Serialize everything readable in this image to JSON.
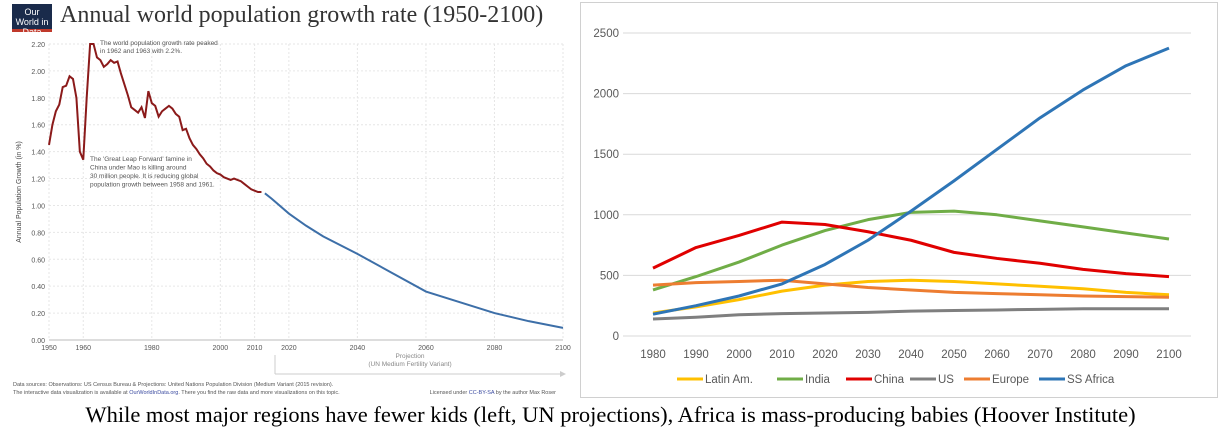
{
  "left": {
    "logo": "Our World in Data",
    "title": "Annual world population growth rate (1950-2100)"
  },
  "caption": "While most major regions have fewer kids (left, UN projections), Africa is mass-producing babies (Hoover Institute)",
  "chart_data": [
    {
      "type": "line",
      "title": "Annual world population growth rate (1950-2100)",
      "ylabel": "Annual Population Growth (in %)",
      "xlim": [
        1950,
        2100
      ],
      "ylim": [
        0,
        2.2
      ],
      "grid": true,
      "xticks": [
        "1950",
        "1960",
        "1980",
        "2000",
        "2010",
        "2020",
        "2040",
        "2060",
        "2080",
        "2100"
      ],
      "yticks": [
        "0.00",
        "0.20",
        "0.40",
        "0.60",
        "0.80",
        "1.00",
        "1.20",
        "1.40",
        "1.60",
        "1.80",
        "2.00",
        "2.20"
      ],
      "annotations": [
        "The world population growth rate peaked in 1962 and 1963 with 2.2%.",
        "The 'Great Leap Forward' famine in China under Mao is killing around 30 million people. It is reducing global population growth between 1958 and 1961."
      ],
      "projection_label": "Projection",
      "projection_sublabel": "(UN Medium Fertility Variant)",
      "source": "Data sources: Observations: US Census Bureau & Projections: United Nations Population Division (Medium Variant (2015 revision).",
      "source2_pre": "The interactive data visualization is available at ",
      "source2_link": "OurWorldInData.org",
      "source2_post": ". There you find the raw data and more visualizations on this topic.",
      "license_pre": "Licensed under ",
      "license_link": "CC-BY-SA",
      "license_post": " by the author Max Roser",
      "series": [
        {
          "color": "#8b1a1a",
          "x": [
            1950,
            1951,
            1952,
            1953,
            1954,
            1955,
            1956,
            1957,
            1958,
            1959,
            1960,
            1961,
            1962,
            1963,
            1964,
            1965,
            1966,
            1967,
            1968,
            1969,
            1970,
            1971,
            1972,
            1973,
            1974,
            1975,
            1976,
            1977,
            1978,
            1979,
            1980,
            1981,
            1982,
            1983,
            1984,
            1985,
            1986,
            1987,
            1988,
            1989,
            1990,
            1991,
            1992,
            1993,
            1994,
            1995,
            1996,
            1997,
            1998,
            1999,
            2000,
            2001,
            2002,
            2003,
            2004,
            2005,
            2006,
            2007,
            2008,
            2009,
            2010,
            2011,
            2012
          ],
          "y": [
            1.45,
            1.6,
            1.7,
            1.75,
            1.88,
            1.89,
            1.96,
            1.94,
            1.8,
            1.4,
            1.34,
            1.8,
            2.2,
            2.2,
            2.1,
            2.08,
            2.03,
            2.05,
            2.08,
            2.06,
            2.07,
            1.98,
            1.9,
            1.82,
            1.73,
            1.71,
            1.69,
            1.73,
            1.65,
            1.85,
            1.76,
            1.74,
            1.66,
            1.7,
            1.72,
            1.74,
            1.72,
            1.68,
            1.66,
            1.56,
            1.57,
            1.5,
            1.45,
            1.42,
            1.38,
            1.35,
            1.31,
            1.29,
            1.26,
            1.24,
            1.23,
            1.21,
            1.2,
            1.19,
            1.2,
            1.19,
            1.18,
            1.16,
            1.14,
            1.12,
            1.11,
            1.1,
            1.1
          ]
        },
        {
          "color": "#3d6fa8",
          "x": [
            2013,
            2015,
            2020,
            2025,
            2030,
            2040,
            2050,
            2060,
            2070,
            2080,
            2090,
            2100
          ],
          "y": [
            1.09,
            1.05,
            0.94,
            0.85,
            0.77,
            0.64,
            0.5,
            0.36,
            0.28,
            0.2,
            0.14,
            0.09
          ]
        }
      ]
    },
    {
      "type": "line",
      "ylim": [
        0,
        2500
      ],
      "grid": true,
      "legend": "bottom",
      "categories": [
        "1980",
        "1990",
        "2000",
        "2010",
        "2020",
        "2030",
        "2040",
        "2050",
        "2060",
        "2070",
        "2080",
        "2090",
        "2100"
      ],
      "yticks": [
        "0",
        "500",
        "1000",
        "1500",
        "2000",
        "2500"
      ],
      "series": [
        {
          "name": "Latin Am.",
          "color": "#ffc000",
          "values": [
            190,
            240,
            300,
            370,
            420,
            450,
            460,
            450,
            430,
            410,
            390,
            360,
            340
          ]
        },
        {
          "name": "India",
          "color": "#70ad47",
          "values": [
            380,
            490,
            610,
            750,
            870,
            960,
            1020,
            1030,
            1000,
            950,
            900,
            850,
            800
          ]
        },
        {
          "name": "China",
          "color": "#e00000",
          "values": [
            560,
            730,
            830,
            940,
            920,
            860,
            790,
            690,
            640,
            600,
            550,
            515,
            490
          ]
        },
        {
          "name": "US",
          "color": "#7f7f7f",
          "values": [
            140,
            155,
            175,
            185,
            190,
            195,
            205,
            210,
            215,
            220,
            225,
            225,
            225
          ]
        },
        {
          "name": "Europe",
          "color": "#ed7d31",
          "values": [
            420,
            440,
            450,
            460,
            430,
            400,
            380,
            360,
            350,
            340,
            330,
            325,
            320
          ]
        },
        {
          "name": "SS Africa",
          "color": "#2e75b6",
          "values": [
            180,
            250,
            330,
            430,
            590,
            790,
            1030,
            1280,
            1540,
            1800,
            2030,
            2230,
            2375
          ]
        }
      ]
    }
  ]
}
